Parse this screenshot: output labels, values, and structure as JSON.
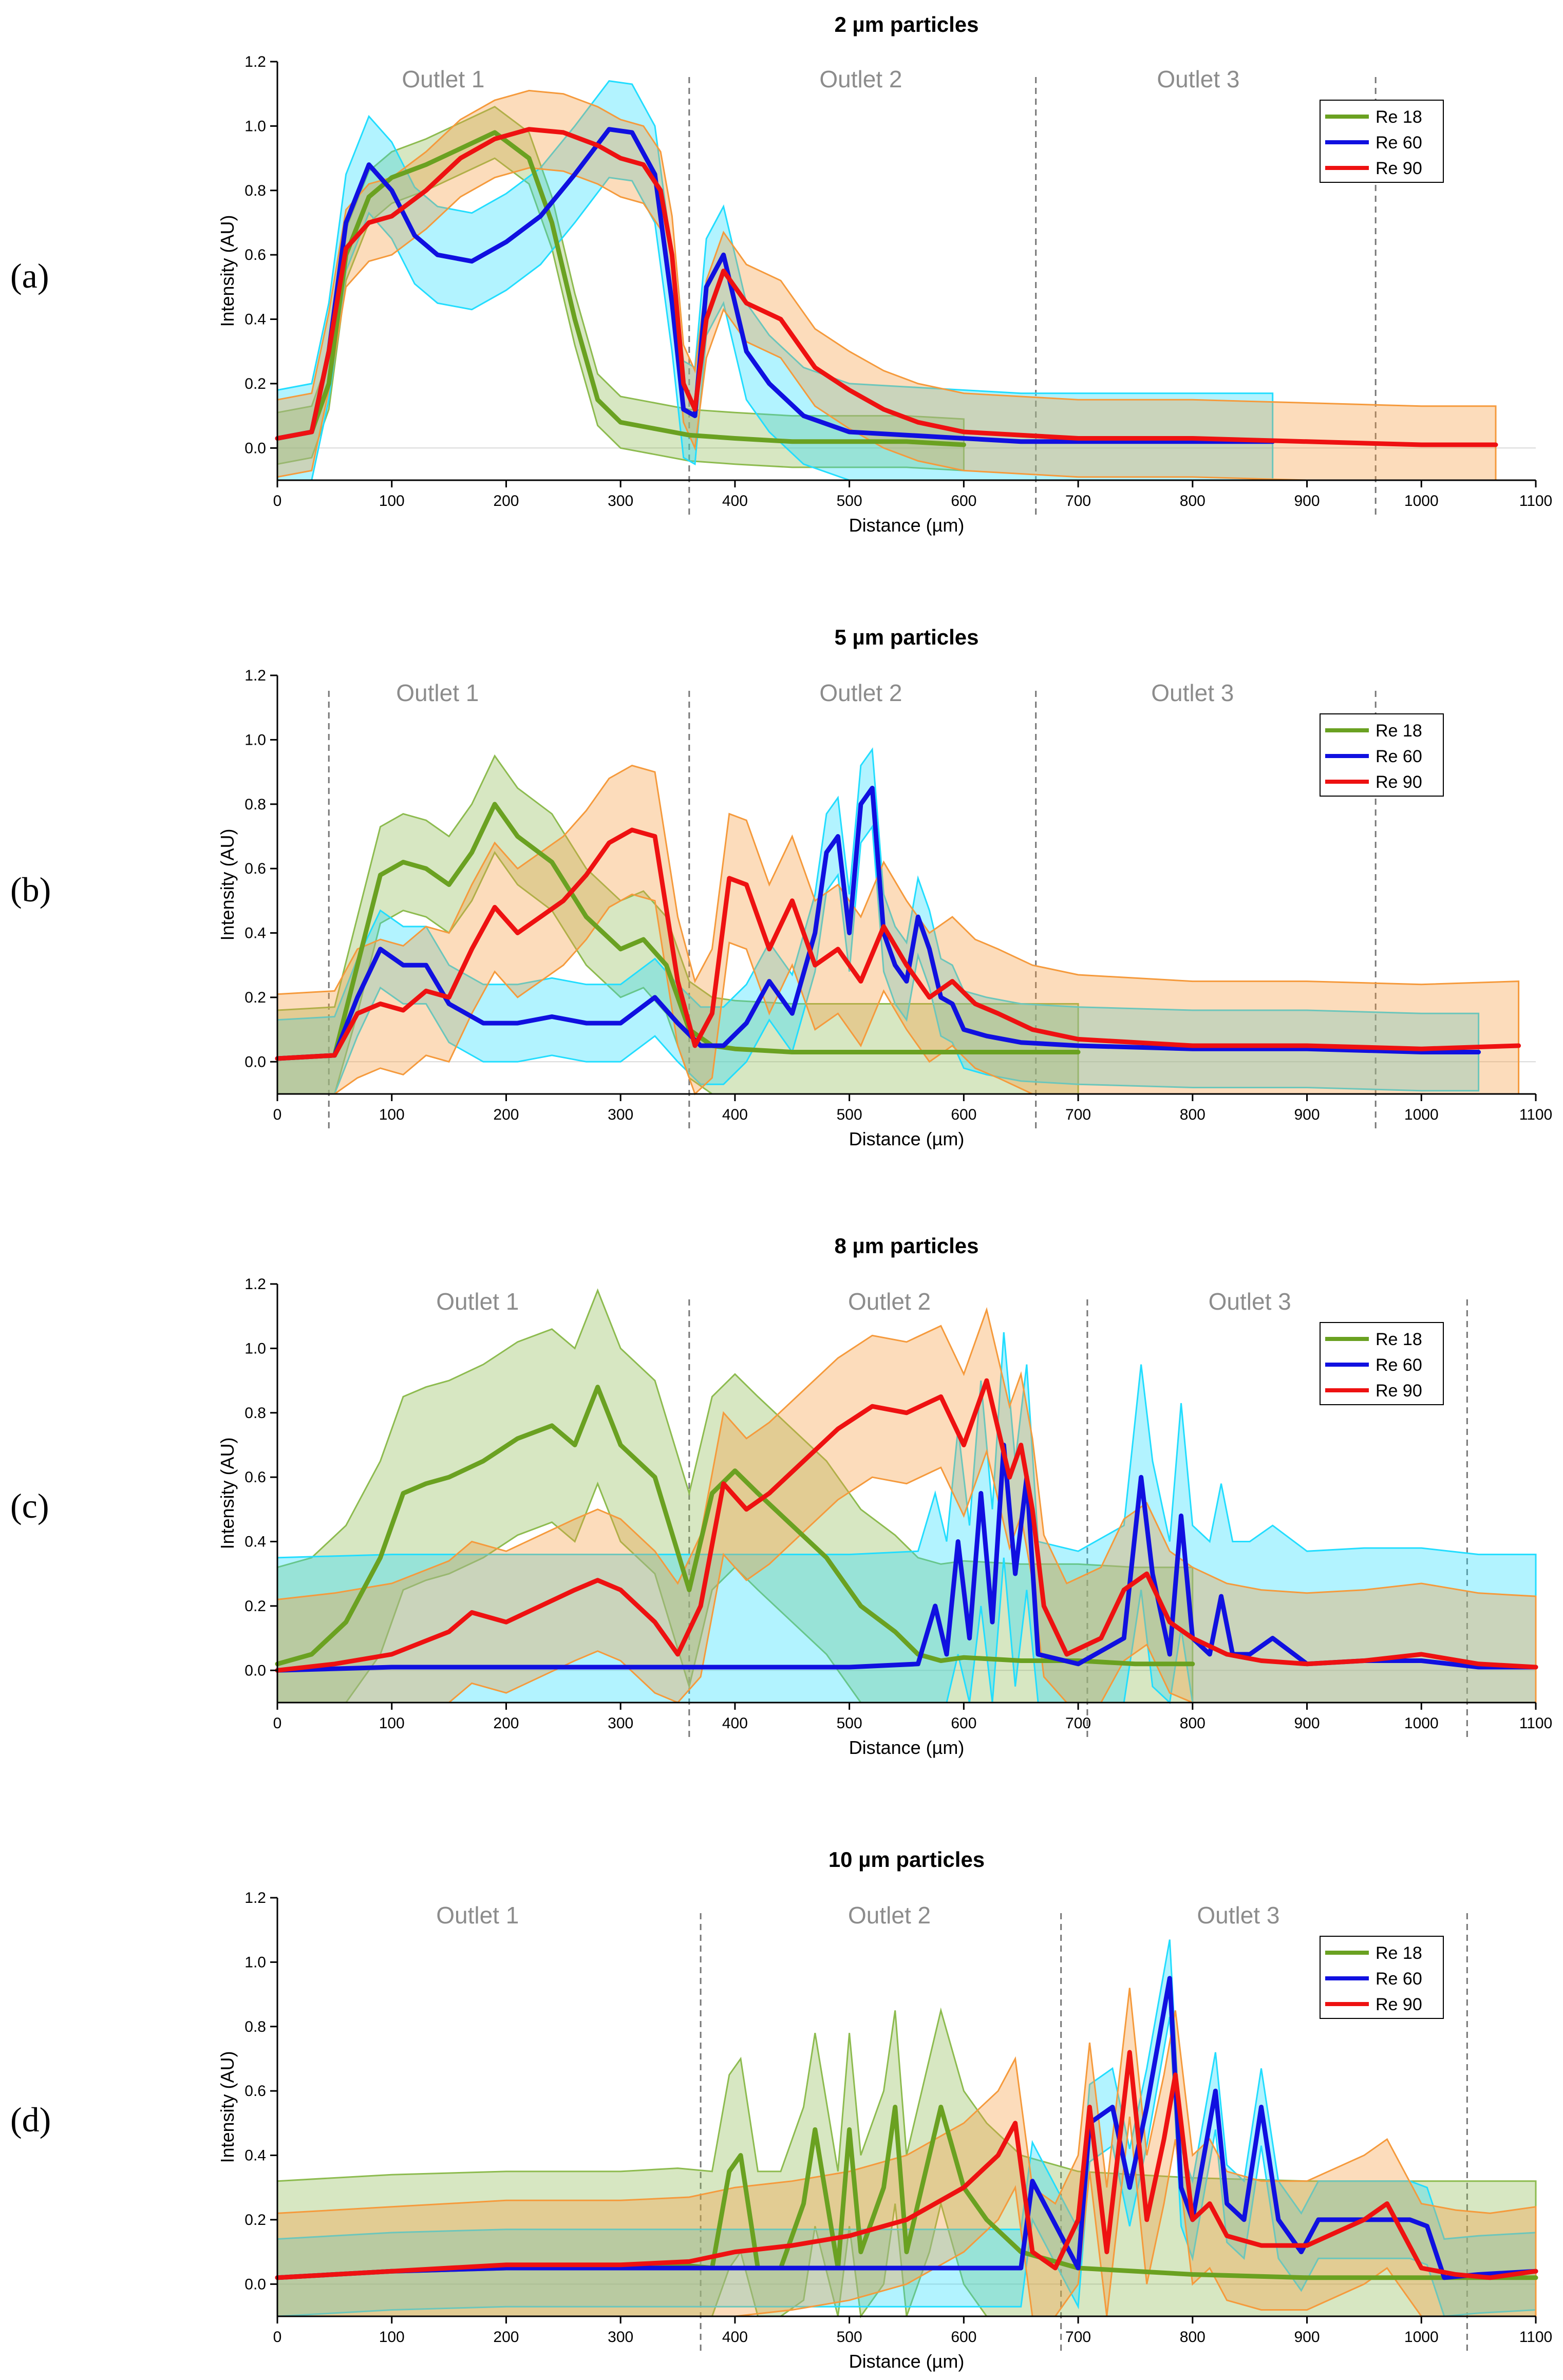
{
  "figure": {
    "x_axis": {
      "label": "Distance (µm)",
      "range": [
        0,
        1100
      ],
      "ticks": [
        0,
        100,
        200,
        300,
        400,
        500,
        600,
        700,
        800,
        900,
        1000,
        1100
      ]
    },
    "y_axis": {
      "label": "Intensity (AU)",
      "range": [
        -0.1,
        1.2
      ],
      "ticks": [
        0.0,
        0.2,
        0.4,
        0.6,
        0.8,
        1.0,
        1.2
      ]
    },
    "legend": [
      "Re 18",
      "Re 60",
      "Re 90"
    ],
    "colors": {
      "Re 18": "#6aa121",
      "Re 60": "#1010e0",
      "Re 90": "#ee1111",
      "band_18": "#8dbb4f",
      "band_60": "#22ddff",
      "band_90": "#f59a3c",
      "divider": "#777777",
      "outlet_text": "#8c8c8c"
    }
  },
  "chart_data": [
    {
      "panel": "(a)",
      "type": "line",
      "title": "2 µm particles",
      "xlabel": "Distance (µm)",
      "ylabel": "Intensity (AU)",
      "xlim": [
        0,
        1100
      ],
      "ylim": [
        -0.1,
        1.2
      ],
      "legend_position": "top-right",
      "outlets": [
        {
          "label": "Outlet 1",
          "x": 145
        },
        {
          "label": "Outlet 2",
          "x": 510
        },
        {
          "label": "Outlet 3",
          "x": 805
        }
      ],
      "dividers": [
        360,
        663,
        960
      ],
      "series": [
        {
          "name": "Re 18",
          "band": 0.08,
          "x": [
            0,
            30,
            45,
            60,
            80,
            100,
            130,
            160,
            190,
            220,
            240,
            260,
            280,
            300,
            330,
            360,
            400,
            450,
            500,
            550,
            600
          ],
          "y": [
            0.03,
            0.05,
            0.2,
            0.6,
            0.78,
            0.84,
            0.88,
            0.93,
            0.98,
            0.9,
            0.7,
            0.4,
            0.15,
            0.08,
            0.06,
            0.04,
            0.03,
            0.02,
            0.02,
            0.02,
            0.01
          ]
        },
        {
          "name": "Re 60",
          "band": 0.15,
          "x": [
            0,
            30,
            45,
            60,
            80,
            100,
            120,
            140,
            170,
            200,
            230,
            260,
            290,
            310,
            330,
            345,
            355,
            365,
            375,
            390,
            410,
            430,
            460,
            500,
            550,
            600,
            650,
            700,
            800,
            870
          ],
          "y": [
            0.03,
            0.05,
            0.3,
            0.7,
            0.88,
            0.8,
            0.66,
            0.6,
            0.58,
            0.64,
            0.72,
            0.85,
            0.99,
            0.98,
            0.85,
            0.45,
            0.12,
            0.1,
            0.5,
            0.6,
            0.3,
            0.2,
            0.1,
            0.05,
            0.04,
            0.03,
            0.02,
            0.02,
            0.02,
            0.02
          ]
        },
        {
          "name": "Re 90",
          "band": 0.12,
          "x": [
            0,
            30,
            45,
            60,
            80,
            100,
            130,
            160,
            190,
            220,
            250,
            280,
            300,
            320,
            335,
            345,
            355,
            365,
            375,
            390,
            410,
            440,
            470,
            500,
            530,
            560,
            600,
            650,
            700,
            800,
            900,
            1000,
            1065
          ],
          "y": [
            0.03,
            0.05,
            0.3,
            0.62,
            0.7,
            0.72,
            0.8,
            0.9,
            0.96,
            0.99,
            0.98,
            0.94,
            0.9,
            0.88,
            0.8,
            0.6,
            0.2,
            0.12,
            0.4,
            0.55,
            0.45,
            0.4,
            0.25,
            0.18,
            0.12,
            0.08,
            0.05,
            0.04,
            0.03,
            0.03,
            0.02,
            0.01,
            0.01
          ]
        }
      ]
    },
    {
      "panel": "(b)",
      "type": "line",
      "title": "5 µm particles",
      "xlabel": "Distance (µm)",
      "ylabel": "Intensity (AU)",
      "xlim": [
        0,
        1100
      ],
      "ylim": [
        -0.1,
        1.2
      ],
      "legend_position": "top-right",
      "outlets": [
        {
          "label": "Outlet 1",
          "x": 140
        },
        {
          "label": "Outlet 2",
          "x": 510
        },
        {
          "label": "Outlet 3",
          "x": 800
        }
      ],
      "dividers": [
        45,
        360,
        663,
        960
      ],
      "series": [
        {
          "name": "Re 18",
          "band": 0.15,
          "x": [
            0,
            50,
            70,
            90,
            110,
            130,
            150,
            170,
            190,
            210,
            240,
            270,
            300,
            320,
            340,
            360,
            380,
            400,
            450,
            500,
            550,
            600,
            650,
            700
          ],
          "y": [
            0.01,
            0.02,
            0.3,
            0.58,
            0.62,
            0.6,
            0.55,
            0.65,
            0.8,
            0.7,
            0.62,
            0.45,
            0.35,
            0.38,
            0.3,
            0.1,
            0.05,
            0.04,
            0.03,
            0.03,
            0.03,
            0.03,
            0.03,
            0.03
          ]
        },
        {
          "name": "Re 60",
          "band": 0.12,
          "x": [
            0,
            50,
            70,
            90,
            110,
            130,
            150,
            180,
            210,
            240,
            270,
            300,
            330,
            350,
            370,
            390,
            410,
            430,
            450,
            470,
            480,
            490,
            500,
            510,
            520,
            530,
            540,
            550,
            560,
            570,
            580,
            590,
            600,
            620,
            650,
            700,
            800,
            900,
            1000,
            1050
          ],
          "y": [
            0.01,
            0.02,
            0.2,
            0.35,
            0.3,
            0.3,
            0.18,
            0.12,
            0.12,
            0.14,
            0.12,
            0.12,
            0.2,
            0.12,
            0.05,
            0.05,
            0.12,
            0.25,
            0.15,
            0.4,
            0.65,
            0.7,
            0.4,
            0.8,
            0.85,
            0.4,
            0.3,
            0.25,
            0.45,
            0.35,
            0.2,
            0.18,
            0.1,
            0.08,
            0.06,
            0.05,
            0.04,
            0.04,
            0.03,
            0.03
          ]
        },
        {
          "name": "Re 90",
          "band": 0.2,
          "x": [
            0,
            50,
            70,
            90,
            110,
            130,
            150,
            170,
            190,
            210,
            230,
            250,
            270,
            290,
            310,
            330,
            350,
            365,
            380,
            395,
            410,
            430,
            450,
            470,
            490,
            510,
            530,
            550,
            570,
            590,
            610,
            630,
            660,
            700,
            800,
            900,
            1000,
            1085
          ],
          "y": [
            0.01,
            0.02,
            0.15,
            0.18,
            0.16,
            0.22,
            0.2,
            0.35,
            0.48,
            0.4,
            0.45,
            0.5,
            0.58,
            0.68,
            0.72,
            0.7,
            0.25,
            0.05,
            0.15,
            0.57,
            0.55,
            0.35,
            0.5,
            0.3,
            0.35,
            0.25,
            0.42,
            0.3,
            0.2,
            0.25,
            0.18,
            0.15,
            0.1,
            0.07,
            0.05,
            0.05,
            0.04,
            0.05
          ]
        }
      ]
    },
    {
      "panel": "(c)",
      "type": "line",
      "title": "8 µm particles",
      "xlabel": "Distance (µm)",
      "ylabel": "Intensity (AU)",
      "xlim": [
        0,
        1100
      ],
      "ylim": [
        -0.1,
        1.2
      ],
      "legend_position": "top-right",
      "outlets": [
        {
          "label": "Outlet 1",
          "x": 175
        },
        {
          "label": "Outlet 2",
          "x": 535
        },
        {
          "label": "Outlet 3",
          "x": 850
        }
      ],
      "dividers": [
        360,
        708,
        1040
      ],
      "series": [
        {
          "name": "Re 18",
          "band": 0.3,
          "x": [
            0,
            30,
            60,
            90,
            110,
            130,
            150,
            180,
            210,
            240,
            260,
            280,
            300,
            330,
            360,
            380,
            400,
            420,
            450,
            480,
            510,
            540,
            560,
            580,
            600,
            650,
            700,
            750,
            800
          ],
          "y": [
            0.02,
            0.05,
            0.15,
            0.35,
            0.55,
            0.58,
            0.6,
            0.65,
            0.72,
            0.76,
            0.7,
            0.88,
            0.7,
            0.6,
            0.25,
            0.55,
            0.62,
            0.55,
            0.45,
            0.35,
            0.2,
            0.12,
            0.05,
            0.03,
            0.04,
            0.03,
            0.03,
            0.02,
            0.02
          ]
        },
        {
          "name": "Re 60",
          "band": 0.35,
          "x": [
            0,
            100,
            200,
            300,
            400,
            500,
            560,
            575,
            585,
            595,
            605,
            615,
            625,
            635,
            645,
            655,
            665,
            700,
            740,
            755,
            765,
            780,
            790,
            800,
            815,
            825,
            835,
            850,
            870,
            900,
            950,
            1000,
            1050,
            1100
          ],
          "y": [
            0.0,
            0.01,
            0.01,
            0.01,
            0.01,
            0.01,
            0.02,
            0.2,
            0.05,
            0.4,
            0.1,
            0.55,
            0.15,
            0.7,
            0.3,
            0.6,
            0.05,
            0.02,
            0.1,
            0.6,
            0.3,
            0.05,
            0.48,
            0.1,
            0.05,
            0.23,
            0.05,
            0.05,
            0.1,
            0.02,
            0.03,
            0.03,
            0.01,
            0.01
          ]
        },
        {
          "name": "Re 90",
          "band": 0.22,
          "x": [
            0,
            50,
            100,
            150,
            170,
            200,
            230,
            260,
            280,
            300,
            330,
            350,
            370,
            390,
            410,
            430,
            460,
            490,
            520,
            550,
            580,
            600,
            620,
            640,
            650,
            660,
            670,
            690,
            720,
            740,
            760,
            780,
            800,
            830,
            860,
            900,
            950,
            1000,
            1050,
            1100
          ],
          "y": [
            0.0,
            0.02,
            0.05,
            0.12,
            0.18,
            0.15,
            0.2,
            0.25,
            0.28,
            0.25,
            0.15,
            0.05,
            0.2,
            0.58,
            0.5,
            0.55,
            0.65,
            0.75,
            0.82,
            0.8,
            0.85,
            0.7,
            0.9,
            0.6,
            0.7,
            0.5,
            0.2,
            0.05,
            0.1,
            0.25,
            0.3,
            0.15,
            0.1,
            0.05,
            0.03,
            0.02,
            0.03,
            0.05,
            0.02,
            0.01
          ]
        }
      ]
    },
    {
      "panel": "(d)",
      "type": "line",
      "title": "10 µm particles",
      "xlabel": "Distance (µm)",
      "ylabel": "Intensity (AU)",
      "xlim": [
        0,
        1100
      ],
      "ylim": [
        -0.1,
        1.2
      ],
      "legend_position": "top-right",
      "outlets": [
        {
          "label": "Outlet 1",
          "x": 175
        },
        {
          "label": "Outlet 2",
          "x": 535
        },
        {
          "label": "Outlet 3",
          "x": 840
        }
      ],
      "dividers": [
        370,
        685,
        1040
      ],
      "series": [
        {
          "name": "Re 18",
          "band": 0.3,
          "x": [
            0,
            100,
            200,
            300,
            350,
            380,
            395,
            405,
            420,
            440,
            460,
            470,
            490,
            500,
            510,
            530,
            540,
            550,
            570,
            580,
            600,
            620,
            650,
            700,
            800,
            900,
            1000,
            1100
          ],
          "y": [
            0.02,
            0.04,
            0.05,
            0.05,
            0.06,
            0.05,
            0.35,
            0.4,
            0.05,
            0.05,
            0.25,
            0.48,
            0.05,
            0.48,
            0.1,
            0.3,
            0.55,
            0.1,
            0.4,
            0.55,
            0.3,
            0.2,
            0.1,
            0.05,
            0.03,
            0.02,
            0.02,
            0.02
          ]
        },
        {
          "name": "Re 60",
          "band": 0.12,
          "x": [
            0,
            100,
            200,
            300,
            400,
            500,
            600,
            650,
            660,
            700,
            710,
            730,
            745,
            760,
            780,
            790,
            800,
            820,
            830,
            845,
            860,
            875,
            895,
            910,
            950,
            990,
            1005,
            1020,
            1050,
            1100
          ],
          "y": [
            0.02,
            0.04,
            0.05,
            0.05,
            0.05,
            0.05,
            0.05,
            0.05,
            0.32,
            0.05,
            0.5,
            0.55,
            0.3,
            0.55,
            0.95,
            0.3,
            0.2,
            0.6,
            0.25,
            0.2,
            0.55,
            0.2,
            0.1,
            0.2,
            0.2,
            0.2,
            0.18,
            0.02,
            0.03,
            0.04
          ]
        },
        {
          "name": "Re 90",
          "band": 0.2,
          "x": [
            0,
            100,
            200,
            300,
            360,
            400,
            450,
            500,
            550,
            600,
            630,
            645,
            660,
            680,
            700,
            710,
            725,
            745,
            760,
            775,
            785,
            800,
            815,
            830,
            860,
            900,
            950,
            970,
            1000,
            1030,
            1060,
            1100
          ],
          "y": [
            0.02,
            0.04,
            0.06,
            0.06,
            0.07,
            0.1,
            0.12,
            0.15,
            0.2,
            0.3,
            0.4,
            0.5,
            0.1,
            0.05,
            0.2,
            0.55,
            0.1,
            0.72,
            0.2,
            0.45,
            0.65,
            0.2,
            0.25,
            0.15,
            0.12,
            0.12,
            0.2,
            0.25,
            0.05,
            0.03,
            0.02,
            0.04
          ]
        }
      ]
    }
  ]
}
